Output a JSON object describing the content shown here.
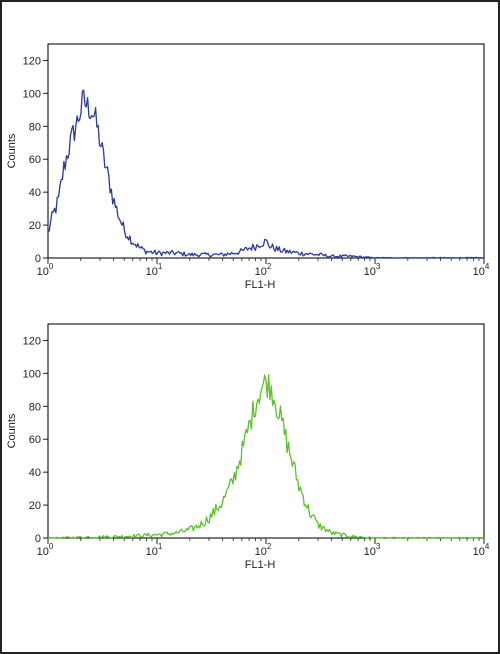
{
  "chart_data": [
    {
      "type": "line",
      "title": "",
      "xlabel": "FL1-H",
      "ylabel": "Counts",
      "xscale": "log",
      "xlim": [
        1,
        10000
      ],
      "ylim": [
        0,
        130
      ],
      "yticks": [
        0,
        20,
        40,
        60,
        80,
        100,
        120
      ],
      "xticks": [
        {
          "base": "10",
          "exp": "0"
        },
        {
          "base": "10",
          "exp": "1"
        },
        {
          "base": "10",
          "exp": "2"
        },
        {
          "base": "10",
          "exp": "3"
        },
        {
          "base": "10",
          "exp": "4"
        }
      ],
      "grid": false,
      "series": [
        {
          "color": "#2a3a9a",
          "x": [
            1.0,
            1.1,
            1.25,
            1.4,
            1.6,
            1.8,
            2.0,
            2.1,
            2.3,
            2.5,
            2.7,
            2.9,
            3.2,
            3.6,
            4.0,
            4.5,
            5.0,
            6.0,
            7.0,
            8.0,
            10,
            15,
            20,
            30,
            40,
            50,
            60,
            70,
            80,
            90,
            100,
            110,
            130,
            150,
            200,
            300,
            400,
            600,
            1000,
            2000,
            10000
          ],
          "y": [
            15,
            25,
            35,
            55,
            70,
            80,
            90,
            96,
            92,
            90,
            85,
            76,
            62,
            48,
            35,
            25,
            17,
            10,
            6,
            4,
            3,
            3,
            2,
            2,
            2,
            3,
            4,
            6,
            7,
            9,
            10,
            7,
            5,
            4,
            3,
            2,
            1,
            1,
            0,
            0,
            0
          ]
        }
      ]
    },
    {
      "type": "line",
      "title": "",
      "xlabel": "FL1-H",
      "ylabel": "Counts",
      "xscale": "log",
      "xlim": [
        1,
        10000
      ],
      "ylim": [
        0,
        130
      ],
      "yticks": [
        0,
        20,
        40,
        60,
        80,
        100,
        120
      ],
      "xticks": [
        {
          "base": "10",
          "exp": "0"
        },
        {
          "base": "10",
          "exp": "1"
        },
        {
          "base": "10",
          "exp": "2"
        },
        {
          "base": "10",
          "exp": "3"
        },
        {
          "base": "10",
          "exp": "4"
        }
      ],
      "grid": false,
      "series": [
        {
          "color": "#5cc22d",
          "x": [
            1,
            5,
            10,
            15,
            20,
            25,
            30,
            40,
            50,
            60,
            70,
            80,
            90,
            100,
            110,
            120,
            140,
            160,
            200,
            250,
            300,
            400,
            600,
            1000,
            3000,
            10000
          ],
          "y": [
            0,
            1,
            2,
            3,
            5,
            8,
            12,
            22,
            35,
            52,
            68,
            82,
            91,
            95,
            92,
            85,
            70,
            55,
            32,
            16,
            8,
            3,
            1,
            0,
            0,
            0
          ]
        }
      ]
    }
  ]
}
